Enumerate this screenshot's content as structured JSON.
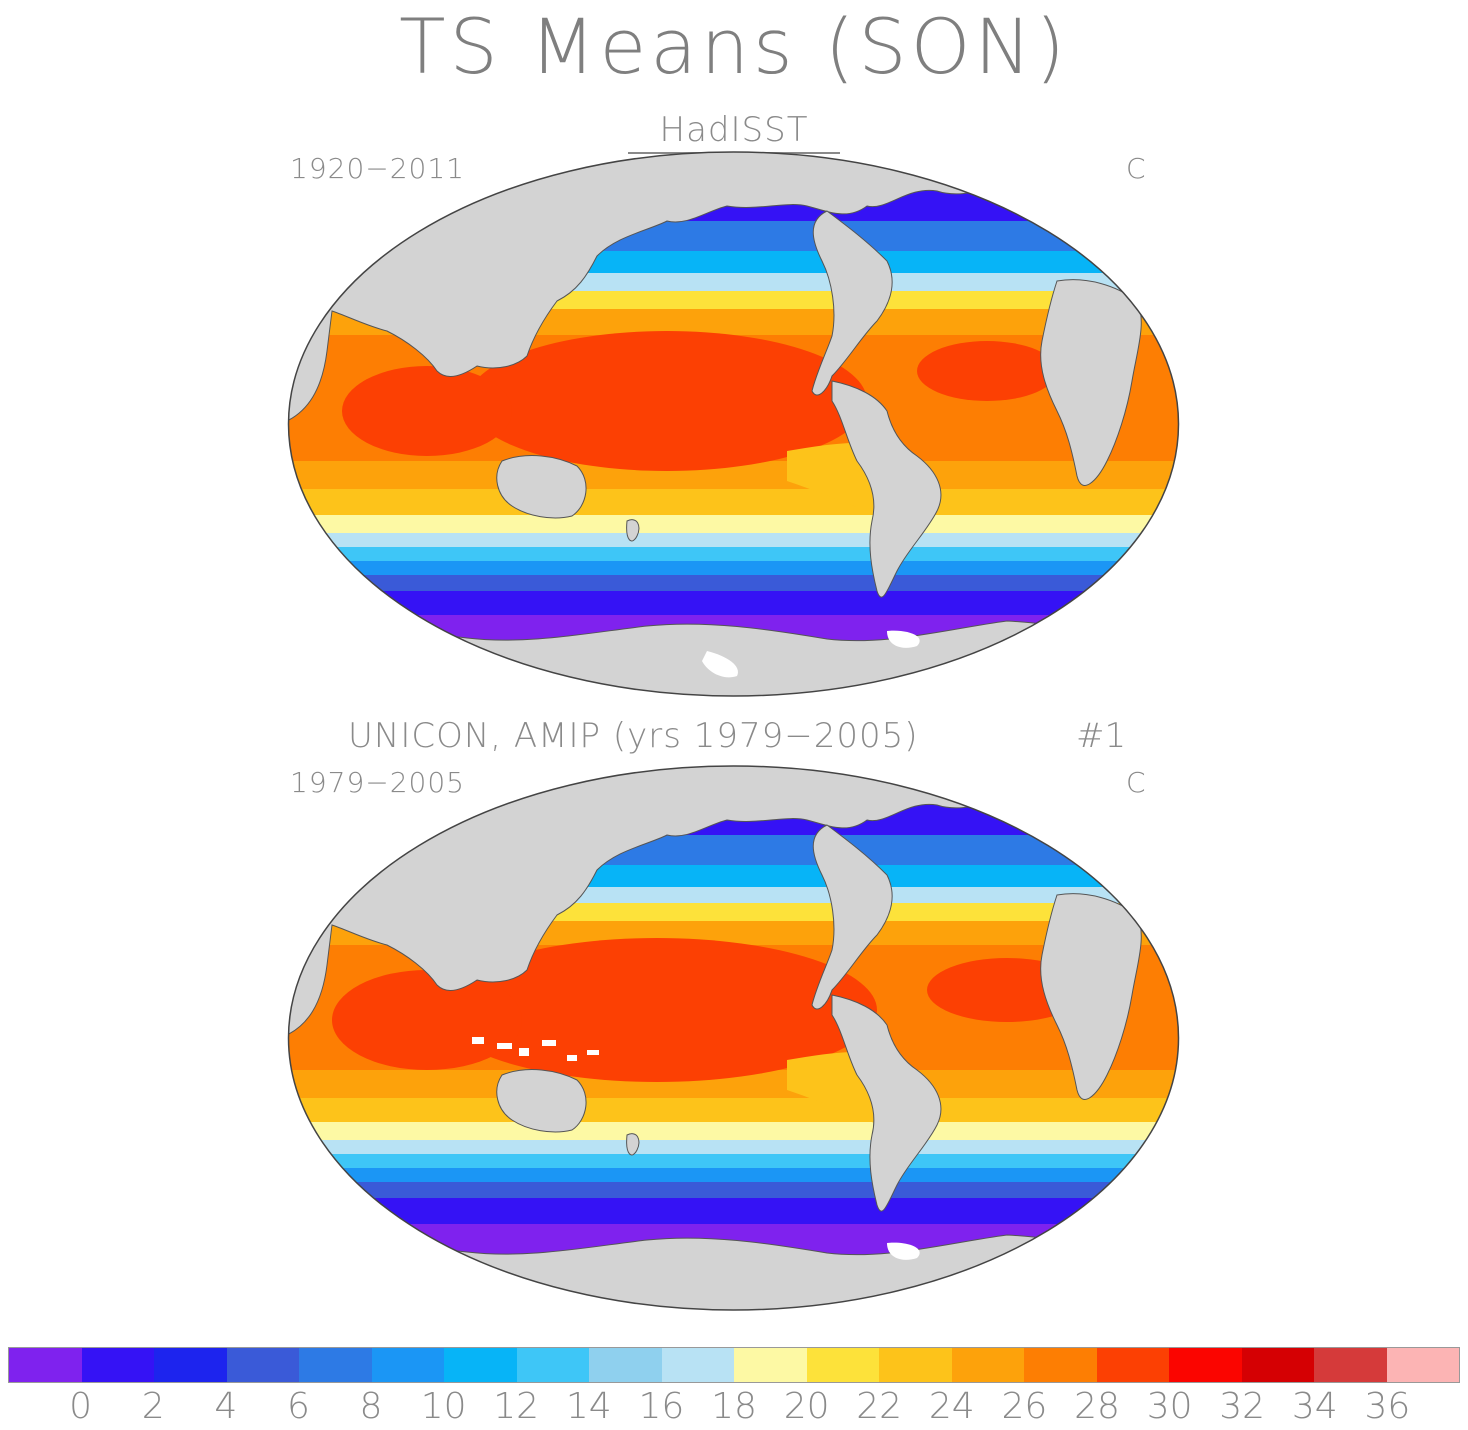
{
  "title": "TS Means (SON)",
  "panels": [
    {
      "name": "HadISST",
      "run": "",
      "period": "1920−2011",
      "unit": "C"
    },
    {
      "name": "UNICON, AMIP (yrs 1979−2005)",
      "run": "#1",
      "period": "1979−2005",
      "unit": "C"
    }
  ],
  "colorbar": {
    "colors": [
      "#7f22ee",
      "#3512f5",
      "#1d24ee",
      "#3a5ad8",
      "#2d7ae5",
      "#1b96f5",
      "#07b4f7",
      "#3ec6f7",
      "#8fd0ee",
      "#b8e2f4",
      "#fdf9a4",
      "#fde23a",
      "#fdc31a",
      "#fda20b",
      "#fd7e03",
      "#fc4003",
      "#fb0500",
      "#d50003",
      "#d53a3a",
      "#fcb4b4"
    ],
    "tick_labels": [
      "0",
      "2",
      "4",
      "6",
      "8",
      "10",
      "12",
      "14",
      "16",
      "18",
      "20",
      "22",
      "24",
      "26",
      "28",
      "30",
      "32",
      "34",
      "36"
    ]
  },
  "land_color": "#d3d3d3"
}
